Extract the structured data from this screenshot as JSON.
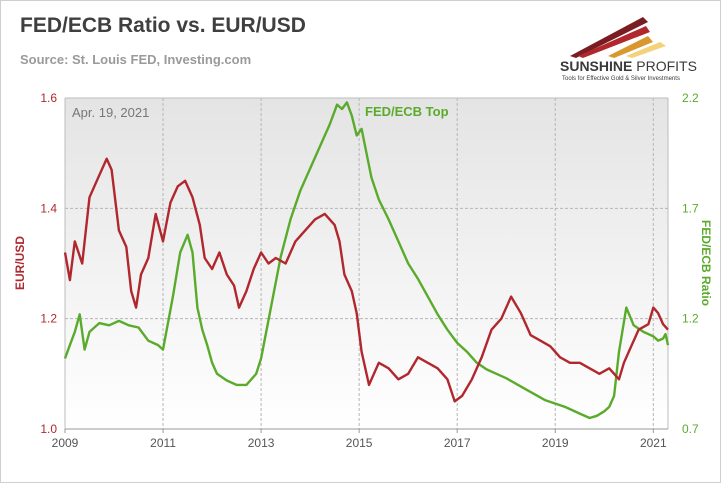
{
  "header": {
    "title": "FED/ECB Ratio vs. EUR/USD",
    "source": "Source: St. Louis FED, Investing.com"
  },
  "logo": {
    "name": "SUNSHINE PROFITS",
    "name_part1": "SUNSHINE",
    "name_part2": "PROFITS",
    "tagline": "Tools for Effective Gold & Silver Investments",
    "colors": [
      "#7a1d22",
      "#b0282e",
      "#d8982e",
      "#f2d27a"
    ]
  },
  "chart_data": {
    "type": "line",
    "date_label": "Apr. 19, 2021",
    "annotation": "FED/ECB Top",
    "x_ticks": [
      "2009",
      "2011",
      "2013",
      "2015",
      "2017",
      "2019",
      "2021"
    ],
    "xlim": [
      2009.0,
      2021.3
    ],
    "y_left": {
      "label": "EUR/USD",
      "lim": [
        1.0,
        1.6
      ],
      "ticks": [
        "1.0",
        "1.2",
        "1.4",
        "1.6"
      ],
      "color": "#b0282e"
    },
    "y_right": {
      "label": "FED/ECB Ratio",
      "lim": [
        0.7,
        2.2
      ],
      "ticks": [
        "0.7",
        "1.2",
        "1.7",
        "2.2"
      ],
      "color": "#5aab2b"
    },
    "grid": true,
    "series": [
      {
        "name": "EUR/USD",
        "axis": "left",
        "color": "#b0282e",
        "x": [
          2009.0,
          2009.1,
          2009.2,
          2009.35,
          2009.5,
          2009.7,
          2009.85,
          2009.95,
          2010.1,
          2010.25,
          2010.35,
          2010.45,
          2010.55,
          2010.7,
          2010.85,
          2011.0,
          2011.15,
          2011.3,
          2011.45,
          2011.6,
          2011.75,
          2011.85,
          2012.0,
          2012.15,
          2012.3,
          2012.45,
          2012.55,
          2012.7,
          2012.85,
          2013.0,
          2013.15,
          2013.3,
          2013.5,
          2013.7,
          2013.9,
          2014.1,
          2014.3,
          2014.5,
          2014.6,
          2014.7,
          2014.85,
          2014.95,
          2015.05,
          2015.2,
          2015.4,
          2015.6,
          2015.8,
          2016.0,
          2016.2,
          2016.4,
          2016.6,
          2016.8,
          2016.95,
          2017.1,
          2017.3,
          2017.5,
          2017.7,
          2017.9,
          2018.1,
          2018.3,
          2018.5,
          2018.7,
          2018.9,
          2019.1,
          2019.3,
          2019.5,
          2019.7,
          2019.9,
          2020.1,
          2020.3,
          2020.4,
          2020.55,
          2020.7,
          2020.9,
          2021.0,
          2021.1,
          2021.2,
          2021.3
        ],
        "values": [
          1.32,
          1.27,
          1.34,
          1.3,
          1.42,
          1.46,
          1.49,
          1.47,
          1.36,
          1.33,
          1.25,
          1.22,
          1.28,
          1.31,
          1.39,
          1.34,
          1.41,
          1.44,
          1.45,
          1.42,
          1.37,
          1.31,
          1.29,
          1.32,
          1.28,
          1.26,
          1.22,
          1.25,
          1.29,
          1.32,
          1.3,
          1.31,
          1.3,
          1.34,
          1.36,
          1.38,
          1.39,
          1.37,
          1.34,
          1.28,
          1.25,
          1.21,
          1.14,
          1.08,
          1.12,
          1.11,
          1.09,
          1.1,
          1.13,
          1.12,
          1.11,
          1.09,
          1.05,
          1.06,
          1.09,
          1.13,
          1.18,
          1.2,
          1.24,
          1.21,
          1.17,
          1.16,
          1.15,
          1.13,
          1.12,
          1.12,
          1.11,
          1.1,
          1.11,
          1.09,
          1.12,
          1.15,
          1.18,
          1.19,
          1.22,
          1.21,
          1.19,
          1.18
        ]
      },
      {
        "name": "FED/ECB Ratio",
        "axis": "right",
        "color": "#5aab2b",
        "x": [
          2009.0,
          2009.1,
          2009.2,
          2009.3,
          2009.4,
          2009.5,
          2009.7,
          2009.9,
          2010.1,
          2010.3,
          2010.5,
          2010.7,
          2010.9,
          2011.0,
          2011.2,
          2011.35,
          2011.5,
          2011.6,
          2011.7,
          2011.8,
          2011.9,
          2012.0,
          2012.1,
          2012.3,
          2012.5,
          2012.7,
          2012.9,
          2013.0,
          2013.2,
          2013.4,
          2013.6,
          2013.8,
          2014.0,
          2014.2,
          2014.4,
          2014.55,
          2014.65,
          2014.75,
          2014.85,
          2014.95,
          2015.05,
          2015.15,
          2015.25,
          2015.4,
          2015.6,
          2015.8,
          2016.0,
          2016.2,
          2016.4,
          2016.6,
          2016.8,
          2017.0,
          2017.2,
          2017.4,
          2017.6,
          2017.8,
          2018.0,
          2018.4,
          2018.8,
          2019.2,
          2019.5,
          2019.7,
          2019.85,
          2020.0,
          2020.1,
          2020.2,
          2020.3,
          2020.45,
          2020.6,
          2020.8,
          2021.0,
          2021.1,
          2021.2,
          2021.25,
          2021.3
        ],
        "values": [
          1.02,
          1.08,
          1.14,
          1.22,
          1.06,
          1.14,
          1.18,
          1.17,
          1.19,
          1.17,
          1.16,
          1.1,
          1.08,
          1.06,
          1.3,
          1.5,
          1.58,
          1.5,
          1.25,
          1.15,
          1.08,
          1.0,
          0.95,
          0.92,
          0.9,
          0.9,
          0.95,
          1.02,
          1.25,
          1.48,
          1.65,
          1.78,
          1.88,
          1.98,
          2.08,
          2.17,
          2.15,
          2.18,
          2.12,
          2.03,
          2.06,
          1.95,
          1.84,
          1.74,
          1.65,
          1.55,
          1.45,
          1.38,
          1.3,
          1.22,
          1.15,
          1.09,
          1.05,
          1.0,
          0.97,
          0.95,
          0.93,
          0.88,
          0.83,
          0.8,
          0.77,
          0.75,
          0.76,
          0.78,
          0.8,
          0.85,
          1.05,
          1.25,
          1.17,
          1.14,
          1.12,
          1.1,
          1.11,
          1.13,
          1.08
        ]
      }
    ]
  }
}
